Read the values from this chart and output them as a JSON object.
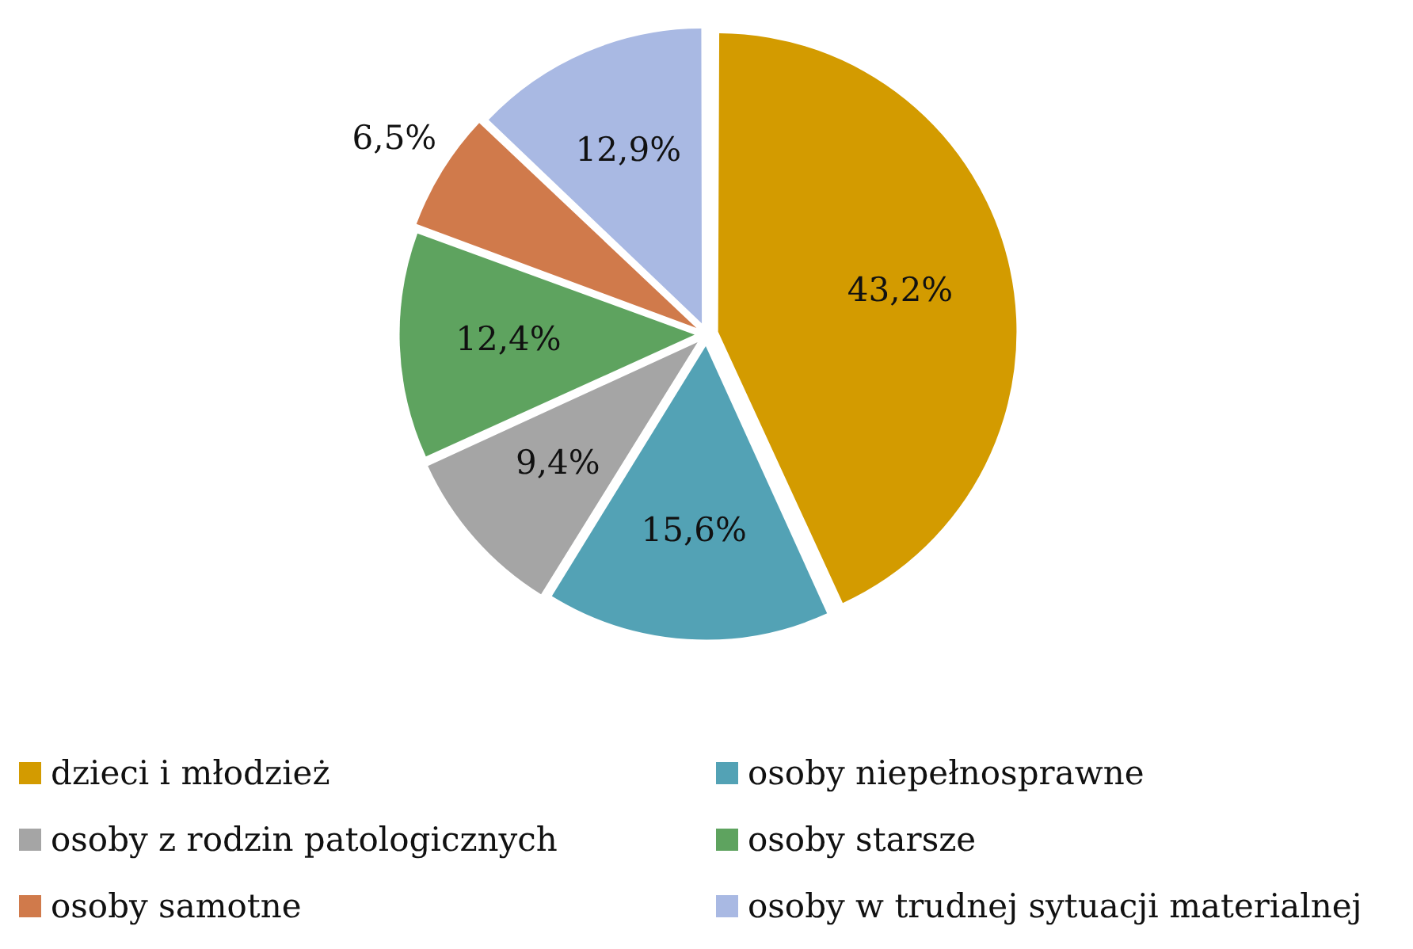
{
  "chart_data": {
    "type": "pie",
    "categories": [
      "dzieci i młodzież",
      "osoby niepełnosprawne",
      "osoby z rodzin patologicznych",
      "osoby starsze",
      "osoby samotne",
      "osoby w trudnej sytuacji materialnej"
    ],
    "values": [
      43.2,
      15.6,
      9.4,
      12.4,
      6.5,
      12.9
    ],
    "colors": [
      "#d39b00",
      "#53a2b5",
      "#a5a5a5",
      "#5ea35f",
      "#d07a4b",
      "#a9b9e3"
    ],
    "value_labels": [
      "43,2%",
      "15,6%",
      "9,4%",
      "12,4%",
      "6,5%",
      "12,9%"
    ],
    "legend": "bottom"
  }
}
